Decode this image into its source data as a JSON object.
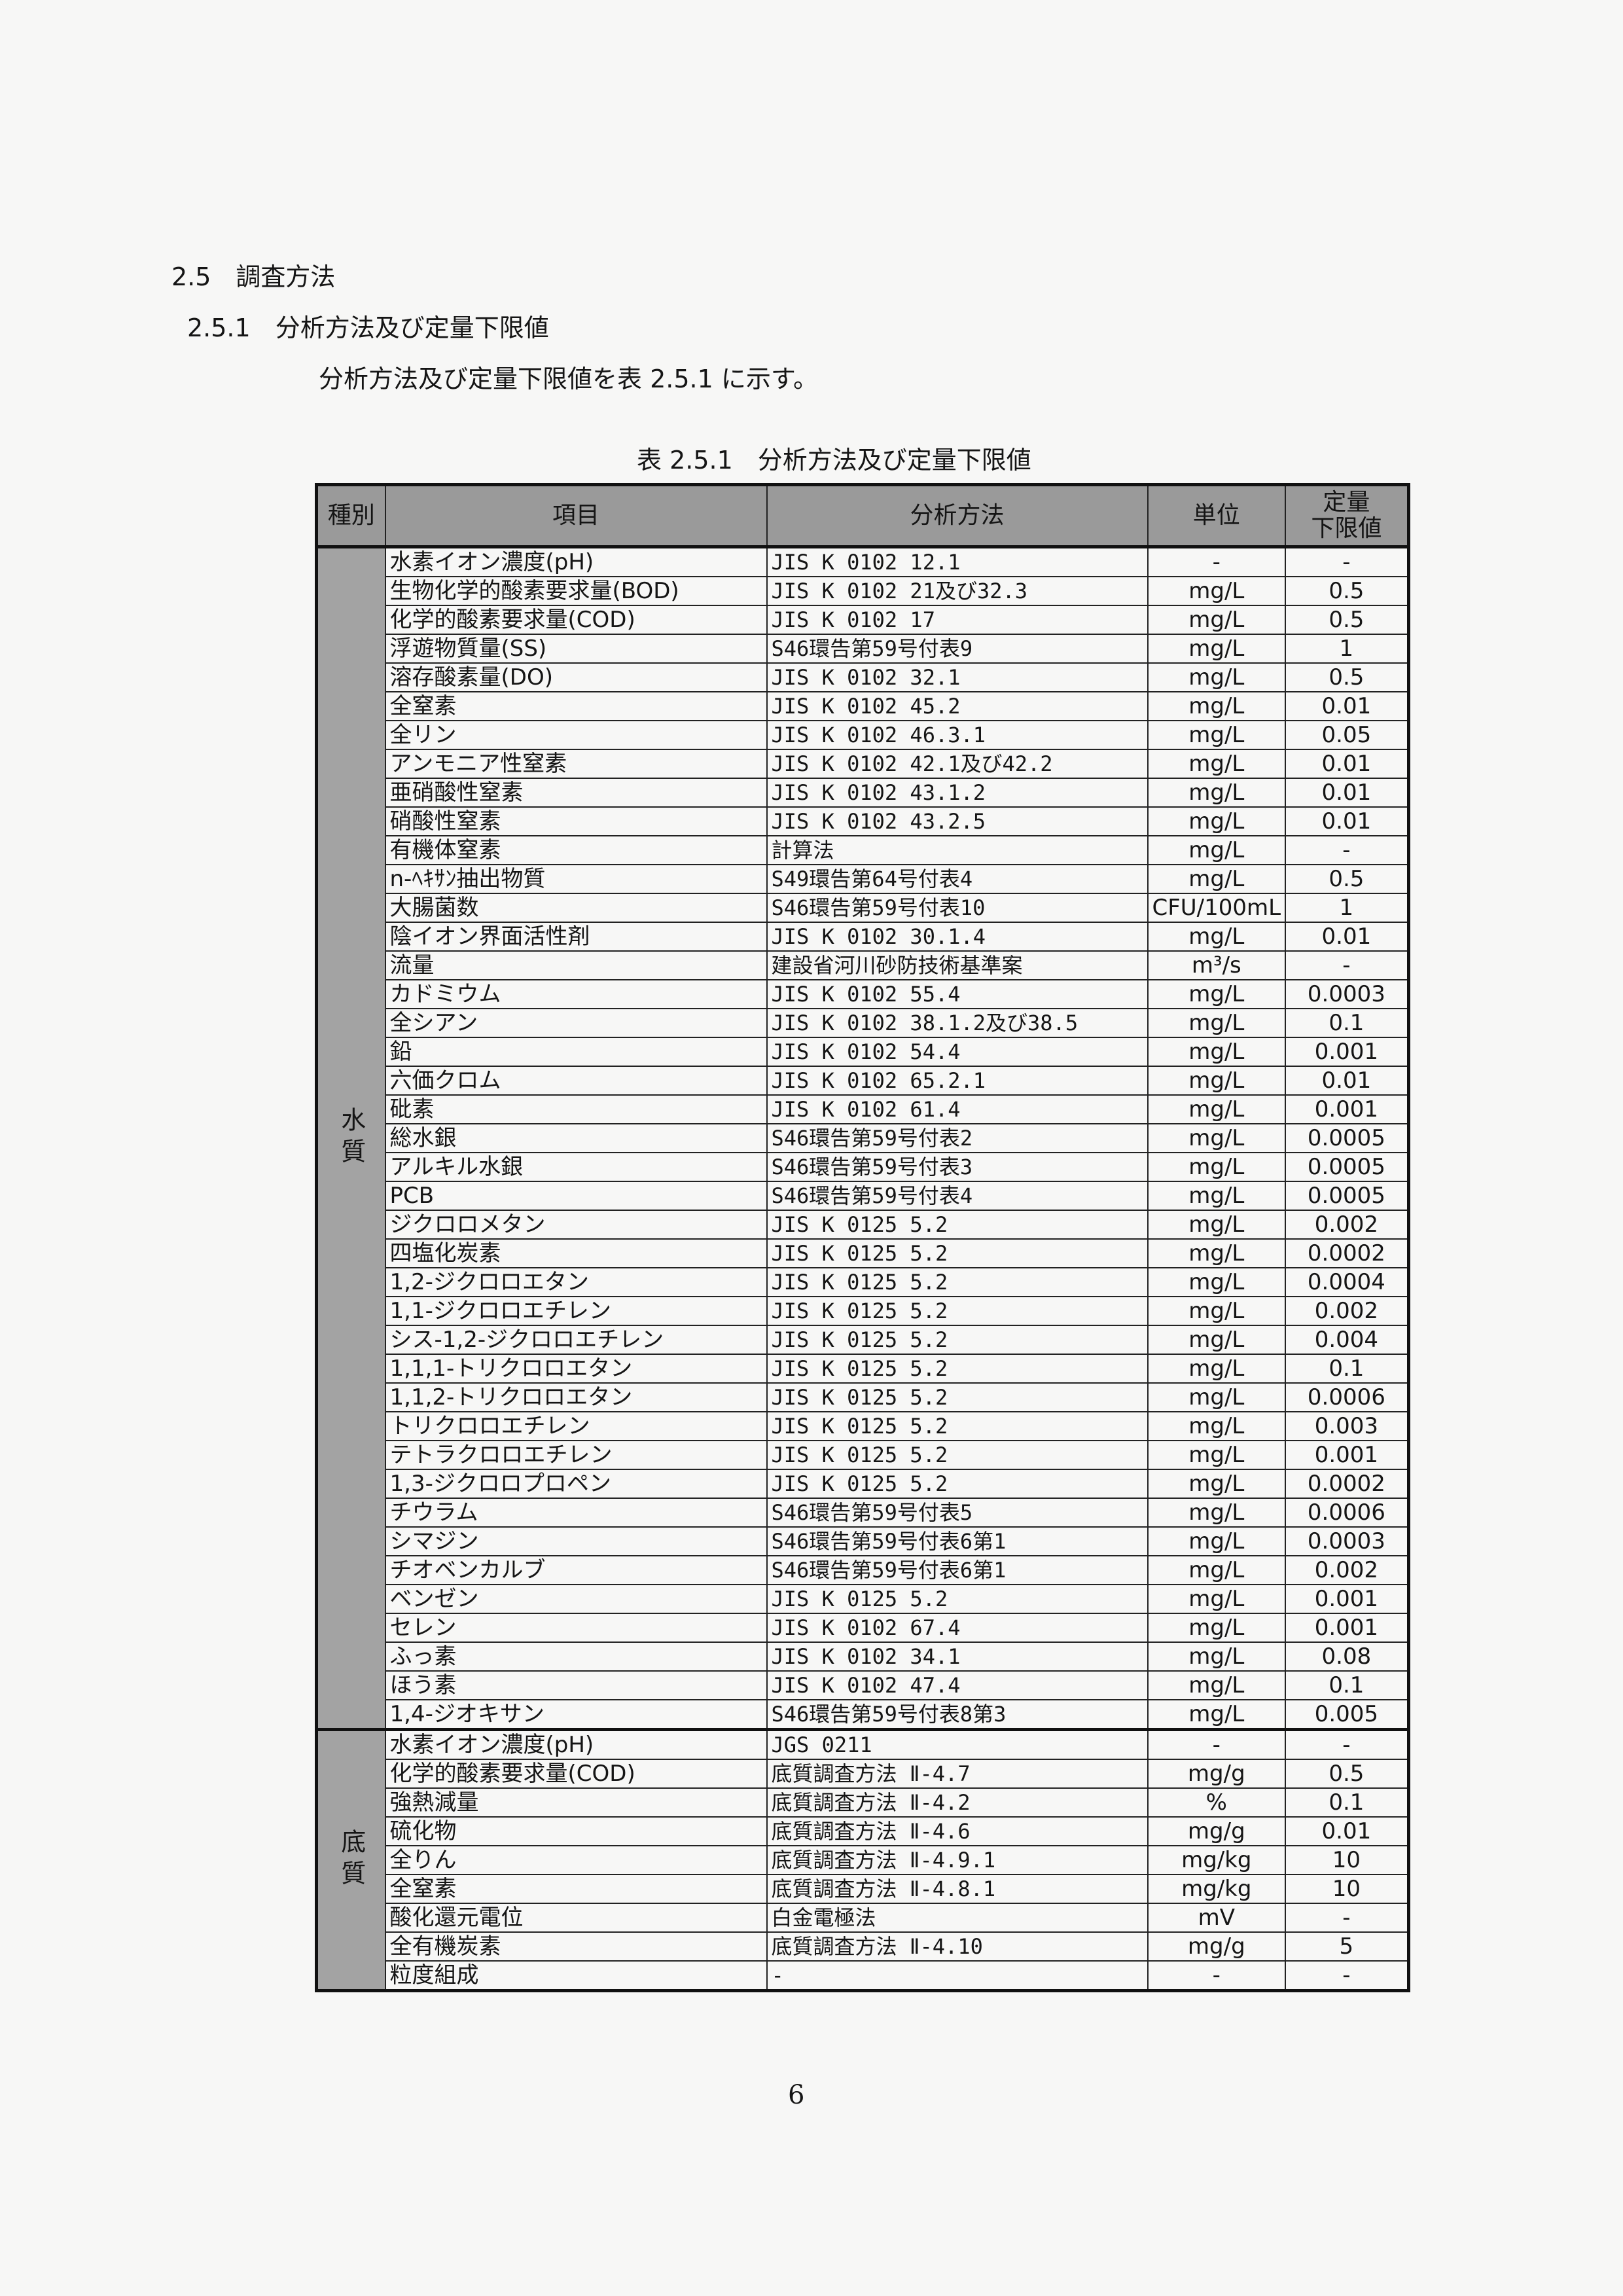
{
  "section_heading": "2.5　調査方法",
  "subsection_heading": "2.5.1　分析方法及び定量下限値",
  "intro_text": "分析方法及び定量下限値を表 2.5.1 に示す。",
  "table_caption": "表 2.5.1　分析方法及び定量下限値",
  "table": {
    "headers": {
      "category": "種別",
      "item": "項目",
      "method": "分析方法",
      "unit": "単位",
      "limit": "定量\n下限値"
    },
    "groups": [
      {
        "category": "水質",
        "rows": [
          {
            "item": "水素イオン濃度(pH)",
            "method": "JIS K 0102 12.1",
            "unit": "-",
            "limit": "-"
          },
          {
            "item": "生物化学的酸素要求量(BOD)",
            "method": "JIS K 0102 21及び32.3",
            "unit": "mg/L",
            "limit": "0.5"
          },
          {
            "item": "化学的酸素要求量(COD)",
            "method": "JIS K 0102 17",
            "unit": "mg/L",
            "limit": "0.5"
          },
          {
            "item": "浮遊物質量(SS)",
            "method": "S46環告第59号付表9",
            "unit": "mg/L",
            "limit": "1"
          },
          {
            "item": "溶存酸素量(DO)",
            "method": "JIS K 0102 32.1",
            "unit": "mg/L",
            "limit": "0.5"
          },
          {
            "item": "全窒素",
            "method": "JIS K 0102 45.2",
            "unit": "mg/L",
            "limit": "0.01"
          },
          {
            "item": "全リン",
            "method": "JIS K 0102 46.3.1",
            "unit": "mg/L",
            "limit": "0.05"
          },
          {
            "item": "アンモニア性窒素",
            "method": "JIS K 0102 42.1及び42.2",
            "unit": "mg/L",
            "limit": "0.01"
          },
          {
            "item": "亜硝酸性窒素",
            "method": "JIS K 0102 43.1.2",
            "unit": "mg/L",
            "limit": "0.01"
          },
          {
            "item": "硝酸性窒素",
            "method": "JIS K 0102 43.2.5",
            "unit": "mg/L",
            "limit": "0.01"
          },
          {
            "item": "有機体窒素",
            "method": "計算法",
            "unit": "mg/L",
            "limit": "-"
          },
          {
            "item": "n-ﾍｷｻﾝ抽出物質",
            "method": "S49環告第64号付表4",
            "unit": "mg/L",
            "limit": "0.5"
          },
          {
            "item": "大腸菌数",
            "method": "S46環告第59号付表10",
            "unit": "CFU/100mL",
            "limit": "1"
          },
          {
            "item": "陰イオン界面活性剤",
            "method": "JIS K 0102 30.1.4",
            "unit": "mg/L",
            "limit": "0.01"
          },
          {
            "item": "流量",
            "method": "建設省河川砂防技術基準案",
            "unit": "m³/s",
            "limit": "-"
          },
          {
            "item": "カドミウム",
            "method": "JIS K 0102 55.4",
            "unit": "mg/L",
            "limit": "0.0003"
          },
          {
            "item": "全シアン",
            "method": "JIS K 0102 38.1.2及び38.5",
            "unit": "mg/L",
            "limit": "0.1"
          },
          {
            "item": "鉛",
            "method": "JIS K 0102 54.4",
            "unit": "mg/L",
            "limit": "0.001"
          },
          {
            "item": "六価クロム",
            "method": "JIS K 0102 65.2.1",
            "unit": "mg/L",
            "limit": "0.01"
          },
          {
            "item": "砒素",
            "method": "JIS K 0102 61.4",
            "unit": "mg/L",
            "limit": "0.001"
          },
          {
            "item": "総水銀",
            "method": "S46環告第59号付表2",
            "unit": "mg/L",
            "limit": "0.0005"
          },
          {
            "item": "アルキル水銀",
            "method": "S46環告第59号付表3",
            "unit": "mg/L",
            "limit": "0.0005"
          },
          {
            "item": "PCB",
            "method": "S46環告第59号付表4",
            "unit": "mg/L",
            "limit": "0.0005"
          },
          {
            "item": "ジクロロメタン",
            "method": "JIS K 0125 5.2",
            "unit": "mg/L",
            "limit": "0.002"
          },
          {
            "item": "四塩化炭素",
            "method": "JIS K 0125 5.2",
            "unit": "mg/L",
            "limit": "0.0002"
          },
          {
            "item": "1,2-ジクロロエタン",
            "method": "JIS K 0125 5.2",
            "unit": "mg/L",
            "limit": "0.0004"
          },
          {
            "item": "1,1-ジクロロエチレン",
            "method": "JIS K 0125 5.2",
            "unit": "mg/L",
            "limit": "0.002"
          },
          {
            "item": "シス-1,2-ジクロロエチレン",
            "method": "JIS K 0125 5.2",
            "unit": "mg/L",
            "limit": "0.004"
          },
          {
            "item": "1,1,1-トリクロロエタン",
            "method": "JIS K 0125 5.2",
            "unit": "mg/L",
            "limit": "0.1"
          },
          {
            "item": "1,1,2-トリクロロエタン",
            "method": "JIS K 0125 5.2",
            "unit": "mg/L",
            "limit": "0.0006"
          },
          {
            "item": "トリクロロエチレン",
            "method": "JIS K 0125 5.2",
            "unit": "mg/L",
            "limit": "0.003"
          },
          {
            "item": "テトラクロロエチレン",
            "method": "JIS K 0125 5.2",
            "unit": "mg/L",
            "limit": "0.001"
          },
          {
            "item": "1,3-ジクロロプロペン",
            "method": "JIS K 0125 5.2",
            "unit": "mg/L",
            "limit": "0.0002"
          },
          {
            "item": "チウラム",
            "method": "S46環告第59号付表5",
            "unit": "mg/L",
            "limit": "0.0006"
          },
          {
            "item": "シマジン",
            "method": "S46環告第59号付表6第1",
            "unit": "mg/L",
            "limit": "0.0003"
          },
          {
            "item": "チオベンカルブ",
            "method": "S46環告第59号付表6第1",
            "unit": "mg/L",
            "limit": "0.002"
          },
          {
            "item": "ベンゼン",
            "method": "JIS K 0125 5.2",
            "unit": "mg/L",
            "limit": "0.001"
          },
          {
            "item": "セレン",
            "method": "JIS K 0102 67.4",
            "unit": "mg/L",
            "limit": "0.001"
          },
          {
            "item": "ふっ素",
            "method": "JIS K 0102 34.1",
            "unit": "mg/L",
            "limit": "0.08"
          },
          {
            "item": "ほう素",
            "method": "JIS K 0102 47.4",
            "unit": "mg/L",
            "limit": "0.1"
          },
          {
            "item": "1,4-ジオキサン",
            "method": "S46環告第59号付表8第3",
            "unit": "mg/L",
            "limit": "0.005"
          }
        ]
      },
      {
        "category": "底質",
        "rows": [
          {
            "item": "水素イオン濃度(pH)",
            "method": "JGS 0211",
            "unit": "-",
            "limit": "-"
          },
          {
            "item": "化学的酸素要求量(COD)",
            "method": "底質調査方法 Ⅱ-4.7",
            "unit": "mg/g",
            "limit": "0.5"
          },
          {
            "item": "強熱減量",
            "method": "底質調査方法 Ⅱ-4.2",
            "unit": "%",
            "limit": "0.1"
          },
          {
            "item": "硫化物",
            "method": "底質調査方法 Ⅱ-4.6",
            "unit": "mg/g",
            "limit": "0.01"
          },
          {
            "item": "全りん",
            "method": "底質調査方法 Ⅱ-4.9.1",
            "unit": "mg/kg",
            "limit": "10"
          },
          {
            "item": "全窒素",
            "method": "底質調査方法 Ⅱ-4.8.1",
            "unit": "mg/kg",
            "limit": "10"
          },
          {
            "item": "酸化還元電位",
            "method": "白金電極法",
            "unit": "mV",
            "limit": "-"
          },
          {
            "item": "全有機炭素",
            "method": "底質調査方法 Ⅱ-4.10",
            "unit": "mg/g",
            "limit": "5"
          },
          {
            "item": "粒度組成",
            "method": "-",
            "unit": "-",
            "limit": "-"
          }
        ]
      }
    ]
  },
  "page_number": "6"
}
